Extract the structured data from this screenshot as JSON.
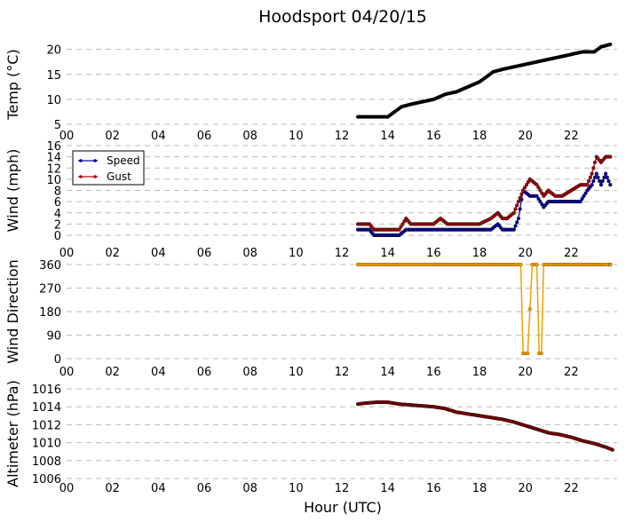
{
  "title": "Hoodsport 04/20/15",
  "xlabel": "Hour (UTC)",
  "x_ticks": [
    "00",
    "02",
    "04",
    "06",
    "08",
    "10",
    "12",
    "14",
    "16",
    "18",
    "20",
    "22"
  ],
  "colors": {
    "temp": "#000000",
    "speed": "#0a0aa0",
    "gust": "#aa0a0a",
    "direction": "#f0a000",
    "altimeter": "#8b0000",
    "grid": "#bbbbbb"
  },
  "chart_data": [
    {
      "type": "line",
      "ylabel": "Temp ($^\\circ$C)",
      "ylabel_display": "Temp (°C)",
      "ylim": [
        5,
        21
      ],
      "yticks": [
        5,
        10,
        15,
        20
      ],
      "grid": true,
      "series": [
        {
          "key": "temp",
          "x": [
            12.7,
            13.0,
            13.5,
            14.0,
            14.3,
            14.6,
            15.0,
            15.5,
            16.0,
            16.5,
            17.0,
            17.5,
            18.0,
            18.3,
            18.6,
            19.0,
            19.5,
            20.0,
            20.5,
            21.0,
            21.5,
            22.0,
            22.5,
            23.0,
            23.3,
            23.7
          ],
          "y": [
            6.5,
            6.5,
            6.5,
            6.5,
            7.5,
            8.5,
            9.0,
            9.5,
            10.0,
            11.0,
            11.5,
            12.5,
            13.5,
            14.5,
            15.5,
            16.0,
            16.5,
            17.0,
            17.5,
            18.0,
            18.5,
            19.0,
            19.5,
            19.5,
            20.5,
            21.0
          ]
        }
      ]
    },
    {
      "type": "line",
      "ylabel": "Wind (mph)",
      "ylim": [
        0,
        16
      ],
      "yticks": [
        0,
        2,
        4,
        6,
        8,
        10,
        12,
        14,
        16
      ],
      "grid": true,
      "legend": "top-left",
      "series": [
        {
          "key": "speed",
          "name": "Speed",
          "x": [
            12.7,
            13.2,
            13.4,
            14.0,
            14.5,
            14.8,
            15.0,
            15.5,
            16.0,
            16.3,
            16.6,
            17.0,
            17.5,
            18.0,
            18.5,
            18.8,
            19.0,
            19.2,
            19.5,
            19.7,
            19.9,
            20.2,
            20.5,
            20.8,
            21.0,
            21.3,
            21.6,
            22.0,
            22.4,
            22.7,
            22.9,
            23.1,
            23.3,
            23.5,
            23.7
          ],
          "y": [
            1,
            1,
            0,
            0,
            0,
            1,
            1,
            1,
            1,
            1,
            1,
            1,
            1,
            1,
            1,
            2,
            1,
            1,
            1,
            3,
            8,
            7,
            7,
            5,
            6,
            6,
            6,
            6,
            6,
            8,
            9,
            11,
            9,
            11,
            9
          ]
        },
        {
          "key": "gust",
          "name": "Gust",
          "x": [
            12.7,
            13.2,
            13.4,
            14.0,
            14.5,
            14.8,
            15.0,
            15.5,
            16.0,
            16.3,
            16.6,
            17.0,
            17.5,
            18.0,
            18.5,
            18.8,
            19.0,
            19.2,
            19.5,
            19.7,
            19.9,
            20.2,
            20.5,
            20.8,
            21.0,
            21.3,
            21.6,
            22.0,
            22.4,
            22.7,
            22.9,
            23.1,
            23.3,
            23.5,
            23.7
          ],
          "y": [
            2,
            2,
            1,
            1,
            1,
            3,
            2,
            2,
            2,
            3,
            2,
            2,
            2,
            2,
            3,
            4,
            3,
            3,
            4,
            6,
            8,
            10,
            9,
            7,
            8,
            7,
            7,
            8,
            9,
            9,
            11,
            14,
            13,
            14,
            14
          ]
        }
      ]
    },
    {
      "type": "line",
      "ylabel": "Wind Direction",
      "ylim": [
        0,
        360
      ],
      "yticks": [
        0,
        90,
        180,
        270,
        360
      ],
      "grid": true,
      "series": [
        {
          "key": "direction",
          "x": [
            12.7,
            12.9,
            13.1,
            13.4,
            13.8,
            14.8,
            15.0,
            15.3,
            15.6,
            16.0,
            16.5,
            17.0,
            17.5,
            18.0,
            18.5,
            19.0,
            19.5,
            19.8,
            19.9,
            20.1,
            20.3,
            20.5,
            20.6,
            20.7,
            20.8,
            21.0,
            21.5,
            22.0,
            22.5,
            23.0,
            23.5,
            23.7
          ],
          "y": [
            360,
            360,
            360,
            360,
            360,
            360,
            360,
            360,
            360,
            360,
            360,
            360,
            360,
            360,
            360,
            360,
            360,
            360,
            20,
            20,
            360,
            360,
            20,
            20,
            360,
            360,
            360,
            360,
            360,
            360,
            360,
            360
          ]
        }
      ]
    },
    {
      "type": "line",
      "ylabel": "Altimeter (hPa)",
      "ylim": [
        1006,
        1016
      ],
      "yticks": [
        1006,
        1008,
        1010,
        1012,
        1014,
        1016
      ],
      "grid": true,
      "series": [
        {
          "key": "altimeter",
          "x": [
            12.7,
            13.0,
            13.5,
            14.0,
            14.5,
            15.0,
            15.5,
            16.0,
            16.5,
            17.0,
            17.5,
            18.0,
            18.5,
            19.0,
            19.5,
            20.0,
            20.5,
            21.0,
            21.5,
            22.0,
            22.5,
            23.0,
            23.5,
            23.8
          ],
          "y": [
            1014.3,
            1014.4,
            1014.5,
            1014.5,
            1014.3,
            1014.2,
            1014.1,
            1014.0,
            1013.8,
            1013.4,
            1013.2,
            1013.0,
            1012.8,
            1012.6,
            1012.3,
            1011.9,
            1011.5,
            1011.1,
            1010.9,
            1010.6,
            1010.2,
            1009.9,
            1009.5,
            1009.2
          ]
        }
      ]
    }
  ]
}
